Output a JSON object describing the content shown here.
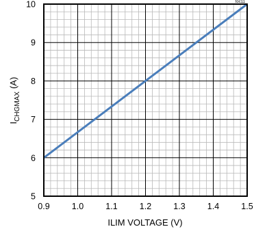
{
  "chart_data": {
    "type": "line",
    "x": [
      0.9,
      1.5
    ],
    "series": [
      {
        "values": [
          6,
          10
        ]
      }
    ],
    "xlabel": "ILIM VOLTAGE (V)",
    "ylabel_main": "I",
    "ylabel_sub": "CHGMAX",
    "ylabel_unit": "(A)",
    "xlim": [
      0.9,
      1.5
    ],
    "ylim": [
      5,
      10
    ],
    "xticks": [
      "0.9",
      "1.0",
      "1.1",
      "1.2",
      "1.3",
      "1.4",
      "1.5"
    ],
    "yticks": [
      "5",
      "6",
      "7",
      "8",
      "9",
      "10"
    ],
    "grid": true,
    "corner_code": "toc11",
    "colors": {
      "line": "#4a7ebb",
      "grid_major": "#000000",
      "grid_minor": "#b8b8b8",
      "frame": "#000000"
    }
  }
}
